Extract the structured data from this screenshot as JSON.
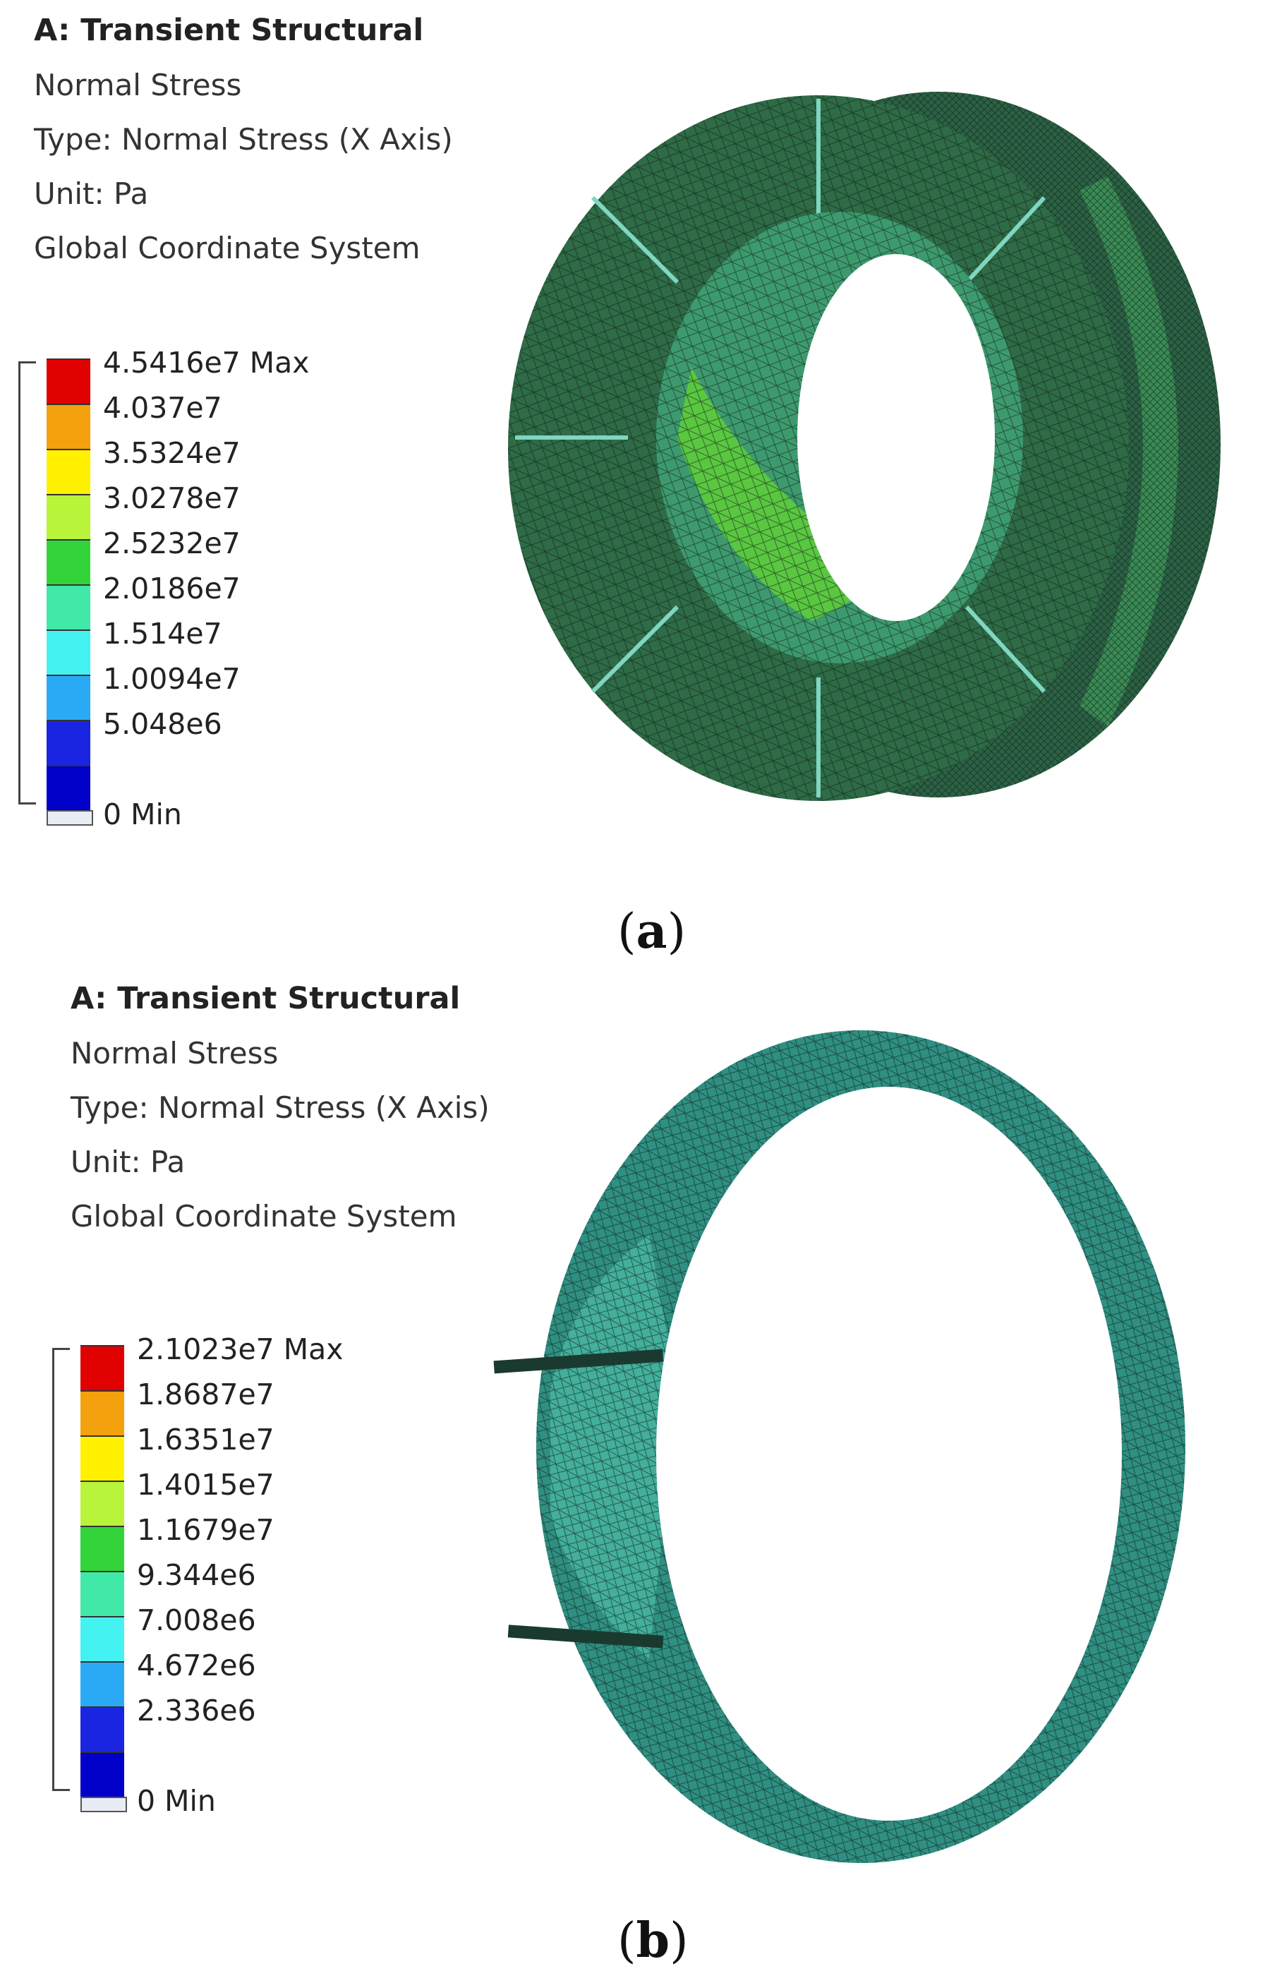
{
  "panels": [
    {
      "caption_letter": "a",
      "title": "A: Transient Structural",
      "result": "Normal Stress",
      "type": "Type: Normal Stress (X Axis)",
      "unit": "Unit: Pa",
      "coord": "Global Coordinate System",
      "legend_values": [
        "4.5416e7 Max",
        "4.037e7",
        "3.5324e7",
        "3.0278e7",
        "2.5232e7",
        "2.0186e7",
        "1.514e7",
        "1.0094e7",
        "5.048e6",
        "0 Min"
      ]
    },
    {
      "caption_letter": "b",
      "title": "A: Transient Structural",
      "result": "Normal Stress",
      "type": "Type: Normal Stress (X Axis)",
      "unit": "Unit: Pa",
      "coord": "Global Coordinate System",
      "legend_values": [
        "2.1023e7 Max",
        "1.8687e7",
        "1.6351e7",
        "1.4015e7",
        "1.1679e7",
        "9.344e6",
        "7.008e6",
        "4.672e6",
        "2.336e6",
        "0 Min"
      ]
    }
  ],
  "legend_colors": [
    "#e00000",
    "#f3a10c",
    "#fff100",
    "#b8f43a",
    "#33d43a",
    "#41e9a9",
    "#45f2f2",
    "#2aaaf5",
    "#1a25e2",
    "#0000c8"
  ],
  "model_colors": {
    "panel_a_base": "#2e6b46",
    "panel_a_dark": "#1f4f33",
    "panel_a_hot": "#5fcf3a",
    "panel_b_base": "#2f8f82",
    "panel_b_light": "#49b7a3",
    "mesh": "#0c1a12"
  }
}
